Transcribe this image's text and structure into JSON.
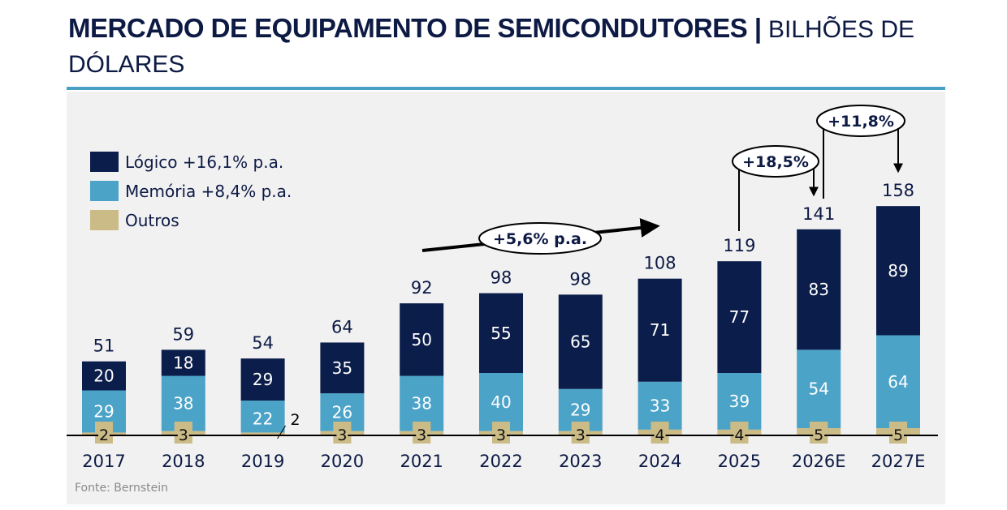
{
  "header": {
    "title_bold": "MERCADO DE EQUIPAMENTO DE SEMICONDUTORES |",
    "title_light": " BILHÕES DE DÓLARES"
  },
  "source": "Fonte: Bernstein",
  "colors": {
    "logico": "#0b1d4a",
    "memoria": "#4ba3c8",
    "outros": "#cbbb86",
    "text_dark": "#0d1a44",
    "rule": "#4aa0c4",
    "panel": "#f1f1f2"
  },
  "chart_data": {
    "type": "bar",
    "stacked": true,
    "title": "MERCADO DE EQUIPAMENTO DE SEMICONDUTORES | BILHÕES DE DÓLARES",
    "xlabel": "",
    "ylabel": "",
    "categories": [
      "2017",
      "2018",
      "2019",
      "2020",
      "2021",
      "2022",
      "2023",
      "2024",
      "2025",
      "2026E",
      "2027E"
    ],
    "series": [
      {
        "name": "Outros",
        "color": "#cbbb86",
        "values": [
          2,
          3,
          2,
          3,
          3,
          3,
          3,
          4,
          4,
          5,
          5
        ]
      },
      {
        "name": "Memória",
        "color": "#4ba3c8",
        "values": [
          29,
          38,
          22,
          26,
          38,
          40,
          29,
          33,
          39,
          54,
          64
        ]
      },
      {
        "name": "Lógico",
        "color": "#0b1d4a",
        "values": [
          20,
          18,
          29,
          35,
          50,
          55,
          65,
          71,
          77,
          83,
          89
        ]
      }
    ],
    "totals": [
      51,
      59,
      54,
      64,
      92,
      98,
      98,
      108,
      119,
      141,
      158
    ],
    "legend": {
      "position": "top-left",
      "entries": [
        {
          "label": "Lógico +16,1% p.a.",
          "color": "#0b1d4a"
        },
        {
          "label": "Memória +8,4% p.a.",
          "color": "#4ba3c8"
        },
        {
          "label": "Outros",
          "color": "#cbbb86"
        }
      ]
    },
    "annotations": [
      {
        "text": "+5,6% p.a.",
        "from": "2021",
        "to": "2024",
        "kind": "trend-arrow"
      },
      {
        "text": "+18,5%",
        "from": "2025",
        "to": "2026E",
        "kind": "growth-bracket"
      },
      {
        "text": "+11,8%",
        "from": "2026E",
        "to": "2027E",
        "kind": "growth-bracket"
      }
    ],
    "ylim": [
      0,
      170
    ],
    "grid": false
  }
}
